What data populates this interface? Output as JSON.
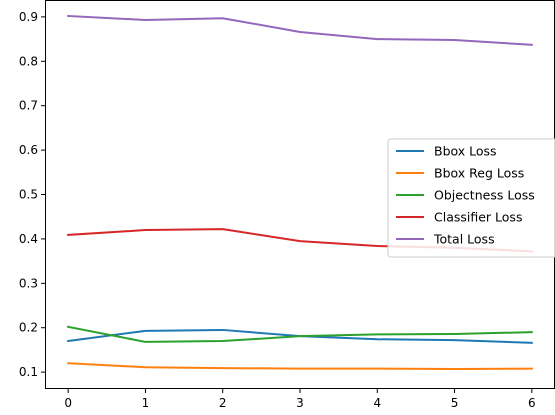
{
  "chart_data": {
    "type": "line",
    "title": "",
    "xlabel": "",
    "ylabel": "",
    "x": [
      0,
      1,
      2,
      3,
      4,
      5,
      6
    ],
    "xlim": [
      -0.3,
      6.3
    ],
    "ylim": [
      0.062,
      0.938
    ],
    "xticks": [
      "0",
      "1",
      "2",
      "3",
      "4",
      "5",
      "6"
    ],
    "yticks": [
      "0.1",
      "0.2",
      "0.3",
      "0.4",
      "0.5",
      "0.6",
      "0.7",
      "0.8",
      "0.9"
    ],
    "grid": false,
    "legend_position": "center-right",
    "series": [
      {
        "name": "Bbox Loss",
        "color": "#1f77b4",
        "values": [
          0.17,
          0.193,
          0.195,
          0.181,
          0.174,
          0.172,
          0.166
        ]
      },
      {
        "name": "Bbox Reg Loss",
        "color": "#ff7f0e",
        "values": [
          0.12,
          0.111,
          0.109,
          0.108,
          0.108,
          0.107,
          0.108
        ]
      },
      {
        "name": "Objectness Loss",
        "color": "#2ca02c",
        "values": [
          0.202,
          0.168,
          0.17,
          0.181,
          0.185,
          0.186,
          0.19
        ]
      },
      {
        "name": "Classifier Loss",
        "color": "#d62728",
        "values": [
          0.409,
          0.42,
          0.422,
          0.395,
          0.384,
          0.38,
          0.372
        ]
      },
      {
        "name": "Total Loss",
        "color": "#9467bd",
        "values": [
          0.902,
          0.893,
          0.897,
          0.866,
          0.85,
          0.848,
          0.837
        ]
      }
    ]
  }
}
